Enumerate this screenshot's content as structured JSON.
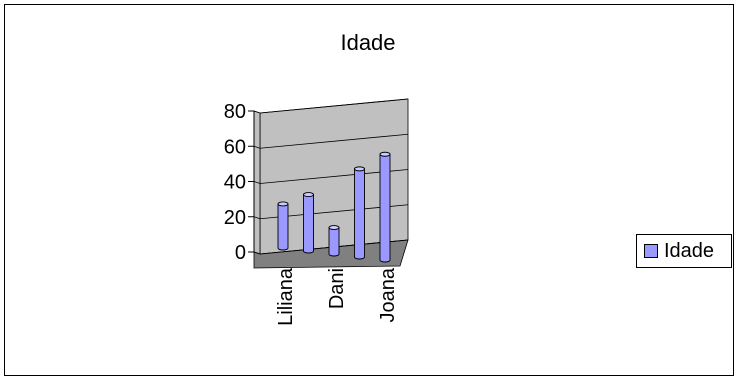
{
  "chart_data": {
    "type": "bar",
    "title": "Idade",
    "categories": [
      "Liliana",
      "",
      "Dani",
      "",
      "Joana"
    ],
    "series": [
      {
        "name": "Idade",
        "values": [
          25,
          32,
          15,
          50,
          60
        ],
        "color": "#9999ff"
      }
    ],
    "yticks": [
      "0",
      "20",
      "40",
      "60",
      "80"
    ],
    "ylim": [
      0,
      80
    ],
    "grid": true,
    "legend": "right",
    "three_d": true
  }
}
